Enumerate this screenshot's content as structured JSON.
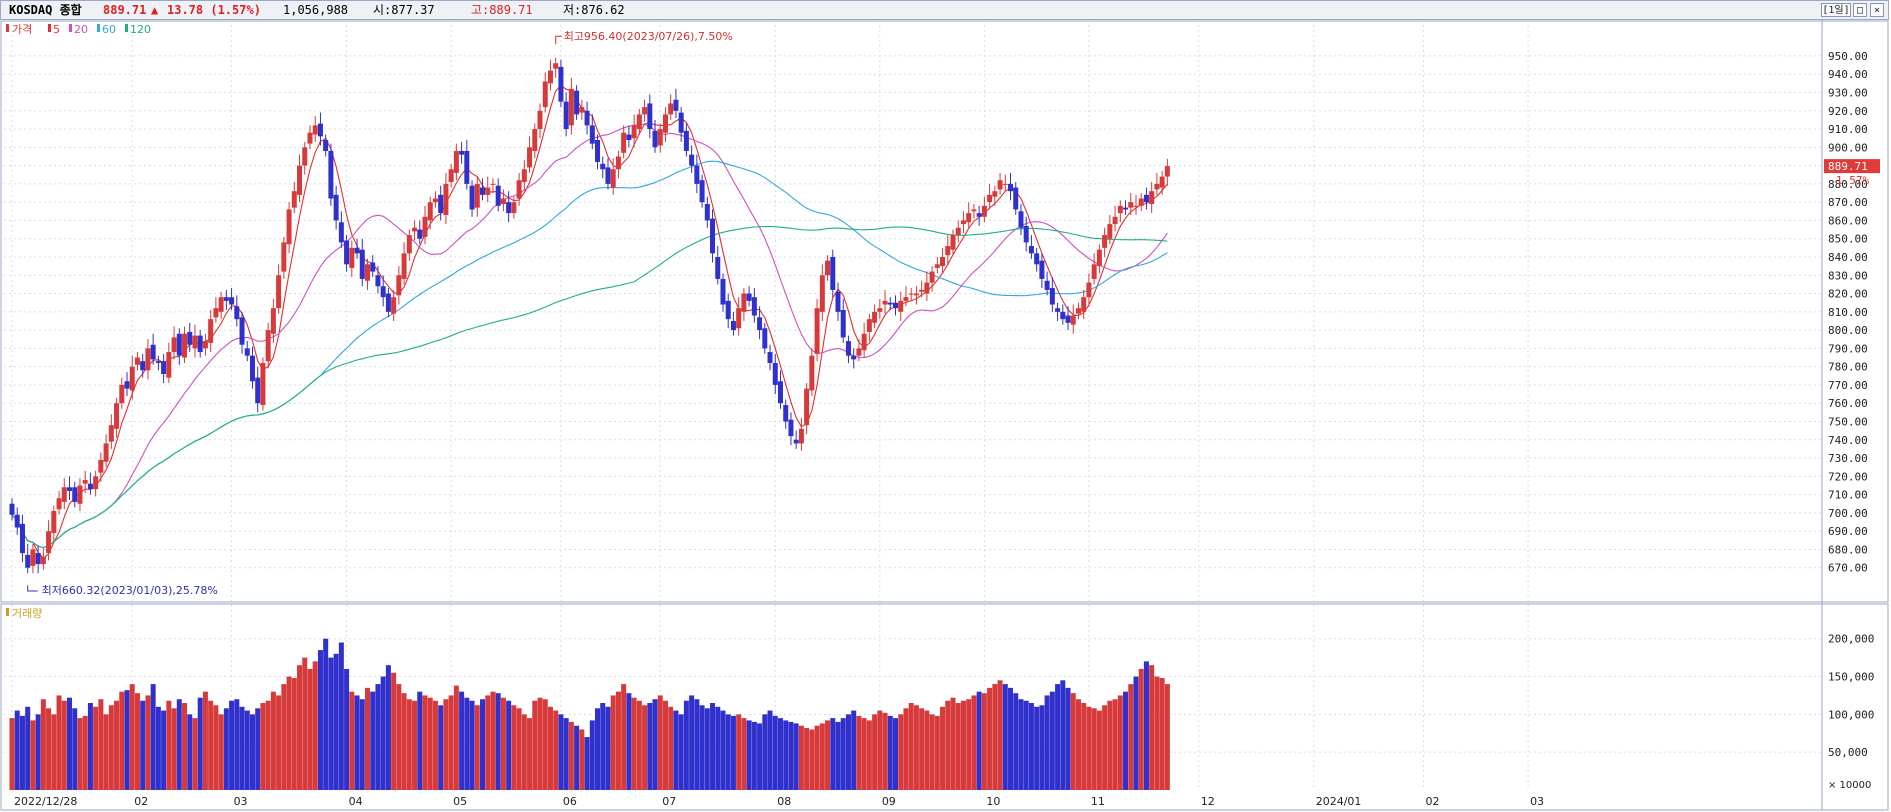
{
  "header": {
    "name": "KOSDAQ 종합",
    "price": "889.71",
    "arrow": "▲",
    "change": "13.78 (1.57%)",
    "volume": "1,056,988",
    "open": "시:877.37",
    "high": "고:889.71",
    "low": "저:876.62",
    "period_button": "[1일]",
    "minimize_label": "_",
    "maximize_label": "□",
    "close_label": "×"
  },
  "legend": {
    "price_label": "가격",
    "ma_labels": [
      "5",
      "20",
      "60",
      "120"
    ],
    "volume_label": "거래량"
  },
  "annotations": {
    "high": "최고956.40(2023/07/26),7.50%",
    "low": "최저660.32(2023/01/03),25.78%",
    "last_price": "889.71",
    "last_change": "1.57%"
  },
  "colors": {
    "up": "#d63a3a",
    "down": "#3030cc",
    "ma5": "#e03030",
    "ma20": "#d050c0",
    "ma60": "#30a8e0",
    "ma120": "#20b080",
    "grid": "#d8dde8",
    "axis_text": "#222222"
  },
  "chart_data": [
    {
      "type": "candlestick",
      "title": "",
      "y_ticks": [
        "670.00",
        "680.00",
        "690.00",
        "700.00",
        "710.00",
        "720.00",
        "730.00",
        "740.00",
        "750.00",
        "760.00",
        "770.00",
        "780.00",
        "790.00",
        "800.00",
        "810.00",
        "820.00",
        "830.00",
        "840.00",
        "850.00",
        "860.00",
        "870.00",
        "880.00",
        "890.00",
        "900.00",
        "910.00",
        "920.00",
        "930.00",
        "940.00",
        "950.00"
      ],
      "ylim": [
        660,
        962
      ],
      "months": [
        "2022/12/28",
        "02",
        "03",
        "04",
        "05",
        "06",
        "07",
        "08",
        "09",
        "10",
        "11",
        "12",
        "2024/01",
        "02",
        "03"
      ],
      "month_positions": [
        0,
        23,
        42,
        64,
        84,
        105,
        124,
        146,
        166,
        186,
        206,
        227,
        249,
        270,
        290
      ],
      "close_series": [
        {
          "name": "close",
          "values": [
            699,
            692,
            678,
            670,
            680,
            672,
            676,
            690,
            701,
            708,
            714,
            712,
            706,
            715,
            718,
            713,
            720,
            729,
            738,
            748,
            760,
            770,
            768,
            780,
            785,
            778,
            790,
            784,
            782,
            776,
            788,
            796,
            786,
            798,
            792,
            797,
            788,
            794,
            806,
            812,
            818,
            816,
            814,
            806,
            792,
            786,
            772,
            760,
            782,
            800,
            812,
            830,
            848,
            866,
            876,
            890,
            900,
            908,
            912,
            906,
            898,
            872,
            860,
            848,
            836,
            845,
            842,
            828,
            836,
            832,
            824,
            818,
            810,
            818,
            830,
            842,
            852,
            856,
            850,
            862,
            870,
            872,
            864,
            880,
            888,
            898,
            896,
            880,
            866,
            880,
            874,
            878,
            880,
            868,
            872,
            864,
            870,
            882,
            888,
            900,
            910,
            920,
            936,
            942,
            946,
            925,
            910,
            932,
            918,
            922,
            912,
            902,
            892,
            888,
            880,
            888,
            895,
            908,
            904,
            912,
            918,
            922,
            910,
            900,
            910,
            918,
            924,
            920,
            908,
            898,
            890,
            880,
            870,
            860,
            842,
            828,
            814,
            806,
            800,
            812,
            820,
            816,
            808,
            800,
            790,
            782,
            770,
            760,
            750,
            742,
            738,
            746,
            768,
            786,
            812,
            830,
            838,
            822,
            810,
            796,
            786,
            784,
            790,
            798,
            806,
            810,
            812,
            816,
            814,
            812,
            816,
            818,
            820,
            820,
            822,
            826,
            832,
            836,
            840,
            846,
            852,
            856,
            860,
            864,
            866,
            862,
            868,
            874,
            876,
            882,
            880,
            876,
            866,
            856,
            848,
            842,
            836,
            828,
            822,
            814,
            810,
            806,
            804,
            808,
            812,
            818,
            826,
            836,
            844,
            852,
            858,
            862,
            868,
            866,
            870,
            868,
            872,
            870,
            876,
            880,
            884,
            889.71
          ]
        }
      ]
    },
    {
      "type": "bar",
      "title": "",
      "ylabel": "× 10000",
      "y_ticks": [
        "50,000",
        "100,000",
        "150,000",
        "200,000"
      ],
      "ylim": [
        0,
        230000
      ],
      "values": [
        95,
        105,
        98,
        110,
        92,
        100,
        120,
        108,
        100,
        125,
        118,
        122,
        108,
        95,
        98,
        115,
        110,
        120,
        100,
        112,
        118,
        130,
        132,
        140,
        128,
        118,
        125,
        140,
        110,
        105,
        118,
        108,
        120,
        115,
        100,
        95,
        122,
        130,
        118,
        112,
        100,
        108,
        118,
        120,
        110,
        105,
        100,
        108,
        115,
        118,
        130,
        125,
        140,
        150,
        148,
        165,
        175,
        160,
        170,
        185,
        200,
        175,
        180,
        195,
        160,
        130,
        125,
        120,
        135,
        130,
        140,
        150,
        165,
        155,
        140,
        128,
        120,
        118,
        130,
        125,
        122,
        118,
        112,
        120,
        125,
        138,
        130,
        122,
        118,
        112,
        120,
        125,
        130,
        128,
        122,
        118,
        112,
        108,
        100,
        95,
        118,
        122,
        120,
        110,
        105,
        100,
        95,
        90,
        85,
        80,
        70,
        92,
        108,
        115,
        110,
        125,
        130,
        140,
        128,
        122,
        118,
        112,
        115,
        120,
        125,
        118,
        110,
        105,
        100,
        118,
        125,
        120,
        112,
        108,
        115,
        110,
        105,
        100,
        98,
        100,
        95,
        92,
        90,
        88,
        100,
        105,
        98,
        95,
        92,
        90,
        88,
        85,
        82,
        80,
        85,
        88,
        92,
        95,
        90,
        95,
        100,
        105,
        98,
        95,
        92,
        100,
        105,
        102,
        98,
        95,
        100,
        108,
        115,
        112,
        108,
        105,
        100,
        98,
        110,
        118,
        122,
        115,
        118,
        120,
        125,
        130,
        128,
        135,
        140,
        145,
        140,
        135,
        128,
        120,
        118,
        115,
        110,
        112,
        125,
        130,
        140,
        145,
        135,
        128,
        120,
        115,
        110,
        108,
        105,
        112,
        118,
        120,
        125,
        130,
        140,
        150,
        160,
        170,
        165,
        150,
        148,
        140,
        128,
        120,
        112,
        118,
        115,
        120,
        122,
        110,
        112,
        118,
        125,
        120,
        108,
        105
      ]
    }
  ]
}
